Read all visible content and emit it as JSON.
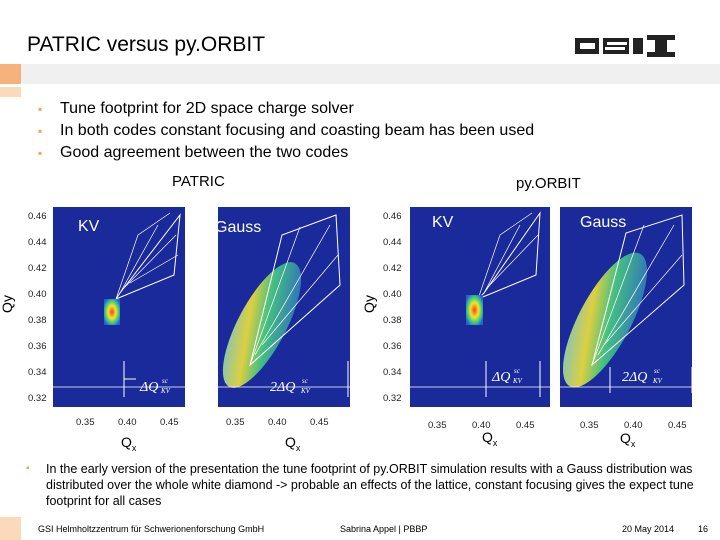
{
  "slide": {
    "title": "PATRIC versus py.ORBIT",
    "bullets": [
      "Tune footprint for 2D space charge solver",
      "In both codes constant focusing and coasting beam has been used",
      "Good agreement between the two codes"
    ],
    "note": "In the early version of the presentation the tune footprint of py.ORBIT simulation results with a Gauss distribution was distributed over the whole white diamond -> probable an effects of the lattice, constant focusing gives the expect tune footprint for all cases",
    "footer": {
      "institute": "GSI Helmholtzzentrum für Schwerionenforschung GmbH",
      "author": "Sabrina Appel | PBBP",
      "date": "20 May 2014",
      "page": "16"
    }
  },
  "figures": {
    "patric_label": "PATRIC",
    "pyorbit_label": "py.ORBIT",
    "panel_labels": [
      "KV",
      "Gauss",
      "KV",
      "Gauss"
    ],
    "qy_label": "Qy",
    "qx_label": "Q",
    "qx_sub": "x",
    "y_ticks": [
      "0.46",
      "0.44",
      "0.42",
      "0.40",
      "0.38",
      "0.36",
      "0.34",
      "0.32"
    ],
    "x_ticks": [
      "0.35",
      "0.40",
      "0.45"
    ],
    "annot_kv": "ΔQ",
    "annot_gauss": "2ΔQ",
    "annot_sup": "sc",
    "annot_sub": "KV"
  },
  "colors": {
    "accent": "#f5a35b",
    "heat_bg": "#1a2a9a"
  }
}
